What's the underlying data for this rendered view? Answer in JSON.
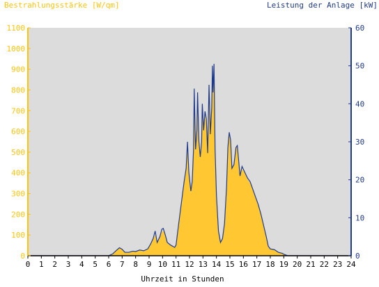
{
  "chart_data": {
    "type": "area",
    "title_left": "Bestrahlungsstärke [W/qm]",
    "title_right": "Leistung der Anlage [kW]",
    "xlabel": "Uhrzeit in Stunden",
    "x_ticks": [
      "0",
      "1",
      "2",
      "3",
      "4",
      "5",
      "6",
      "7",
      "8",
      "9",
      "10",
      "11",
      "12",
      "13",
      "14",
      "15",
      "16",
      "17",
      "18",
      "19",
      "20",
      "21",
      "22",
      "23",
      "24"
    ],
    "y_left_ticks": [
      "0",
      "100",
      "200",
      "300",
      "400",
      "500",
      "600",
      "700",
      "800",
      "900",
      "1000",
      "1100"
    ],
    "y_right_ticks": [
      "0",
      "10",
      "20",
      "30",
      "40",
      "50",
      "60"
    ],
    "xlim": [
      0,
      24
    ],
    "ylim_left": [
      0,
      1100
    ],
    "ylim_right": [
      0,
      60
    ],
    "plot_background": "#dcdcdc",
    "colors": {
      "irradiance": "#ffc832",
      "power": "#1f3a8a",
      "left_axis": "#ffc40a",
      "right_axis": "#1f3a8a"
    },
    "series": [
      {
        "name": "Bestrahlungsstärke",
        "axis": "left",
        "style": "filled-area",
        "points": [
          [
            0,
            0
          ],
          [
            6.0,
            0
          ],
          [
            6.3,
            8
          ],
          [
            6.6,
            30
          ],
          [
            6.8,
            38
          ],
          [
            7.0,
            30
          ],
          [
            7.2,
            15
          ],
          [
            7.5,
            15
          ],
          [
            7.8,
            20
          ],
          [
            8.0,
            18
          ],
          [
            8.3,
            25
          ],
          [
            8.6,
            22
          ],
          [
            8.9,
            30
          ],
          [
            9.1,
            50
          ],
          [
            9.3,
            80
          ],
          [
            9.45,
            100
          ],
          [
            9.6,
            60
          ],
          [
            9.8,
            90
          ],
          [
            9.95,
            115
          ],
          [
            10.05,
            120
          ],
          [
            10.2,
            100
          ],
          [
            10.35,
            60
          ],
          [
            10.6,
            50
          ],
          [
            10.9,
            40
          ],
          [
            11.0,
            50
          ],
          [
            11.2,
            150
          ],
          [
            11.4,
            260
          ],
          [
            11.6,
            350
          ],
          [
            11.75,
            420
          ],
          [
            11.85,
            520
          ],
          [
            11.95,
            400
          ],
          [
            12.1,
            300
          ],
          [
            12.2,
            350
          ],
          [
            12.3,
            500
          ],
          [
            12.35,
            760
          ],
          [
            12.45,
            500
          ],
          [
            12.55,
            600
          ],
          [
            12.6,
            740
          ],
          [
            12.7,
            540
          ],
          [
            12.8,
            470
          ],
          [
            12.9,
            550
          ],
          [
            12.95,
            700
          ],
          [
            13.05,
            600
          ],
          [
            13.15,
            680
          ],
          [
            13.25,
            640
          ],
          [
            13.35,
            500
          ],
          [
            13.45,
            800
          ],
          [
            13.55,
            580
          ],
          [
            13.65,
            710
          ],
          [
            13.7,
            920
          ],
          [
            13.75,
            780
          ],
          [
            13.82,
            880
          ],
          [
            13.9,
            500
          ],
          [
            14.0,
            300
          ],
          [
            14.15,
            120
          ],
          [
            14.3,
            60
          ],
          [
            14.45,
            80
          ],
          [
            14.6,
            150
          ],
          [
            14.75,
            320
          ],
          [
            14.85,
            520
          ],
          [
            14.95,
            600
          ],
          [
            15.05,
            560
          ],
          [
            15.15,
            420
          ],
          [
            15.3,
            440
          ],
          [
            15.45,
            520
          ],
          [
            15.55,
            530
          ],
          [
            15.65,
            460
          ],
          [
            15.75,
            380
          ],
          [
            15.9,
            420
          ],
          [
            16.1,
            400
          ],
          [
            16.3,
            370
          ],
          [
            16.5,
            350
          ],
          [
            16.7,
            320
          ],
          [
            16.9,
            280
          ],
          [
            17.1,
            250
          ],
          [
            17.3,
            200
          ],
          [
            17.5,
            150
          ],
          [
            17.7,
            90
          ],
          [
            17.85,
            40
          ],
          [
            18.0,
            30
          ],
          [
            18.3,
            28
          ],
          [
            18.6,
            15
          ],
          [
            18.9,
            10
          ],
          [
            19.0,
            8
          ],
          [
            19.3,
            0
          ],
          [
            24,
            0
          ]
        ]
      },
      {
        "name": "Leistung der Anlage",
        "axis": "right",
        "style": "line",
        "points": [
          [
            0,
            0
          ],
          [
            6.0,
            0
          ],
          [
            6.3,
            0.5
          ],
          [
            6.6,
            1.5
          ],
          [
            6.8,
            2.1
          ],
          [
            7.0,
            1.7
          ],
          [
            7.2,
            0.9
          ],
          [
            7.5,
            0.9
          ],
          [
            7.8,
            1.2
          ],
          [
            8.0,
            1.1
          ],
          [
            8.3,
            1.5
          ],
          [
            8.6,
            1.3
          ],
          [
            8.9,
            1.8
          ],
          [
            9.1,
            3.0
          ],
          [
            9.3,
            4.5
          ],
          [
            9.45,
            6.5
          ],
          [
            9.6,
            3.5
          ],
          [
            9.8,
            5.0
          ],
          [
            9.95,
            7.0
          ],
          [
            10.05,
            7.2
          ],
          [
            10.2,
            5.5
          ],
          [
            10.35,
            3.5
          ],
          [
            10.6,
            2.8
          ],
          [
            10.9,
            2.2
          ],
          [
            11.0,
            2.8
          ],
          [
            11.2,
            8.5
          ],
          [
            11.4,
            14.0
          ],
          [
            11.6,
            19.5
          ],
          [
            11.75,
            23.0
          ],
          [
            11.85,
            30.0
          ],
          [
            11.95,
            22.0
          ],
          [
            12.1,
            17.0
          ],
          [
            12.2,
            19.5
          ],
          [
            12.3,
            28.0
          ],
          [
            12.35,
            44.0
          ],
          [
            12.45,
            28.0
          ],
          [
            12.55,
            33.0
          ],
          [
            12.6,
            43.0
          ],
          [
            12.7,
            30.0
          ],
          [
            12.8,
            26.0
          ],
          [
            12.9,
            30.0
          ],
          [
            12.95,
            40.0
          ],
          [
            13.05,
            33.0
          ],
          [
            13.15,
            38.0
          ],
          [
            13.25,
            36.0
          ],
          [
            13.35,
            27.0
          ],
          [
            13.45,
            45.0
          ],
          [
            13.55,
            32.0
          ],
          [
            13.65,
            39.0
          ],
          [
            13.7,
            50.0
          ],
          [
            13.75,
            43.0
          ],
          [
            13.82,
            50.5
          ],
          [
            13.9,
            28.0
          ],
          [
            14.0,
            16.0
          ],
          [
            14.15,
            6.5
          ],
          [
            14.3,
            3.5
          ],
          [
            14.45,
            4.5
          ],
          [
            14.6,
            8.5
          ],
          [
            14.75,
            18.0
          ],
          [
            14.85,
            28.5
          ],
          [
            14.95,
            32.5
          ],
          [
            15.05,
            30.5
          ],
          [
            15.15,
            23.0
          ],
          [
            15.3,
            24.0
          ],
          [
            15.45,
            28.5
          ],
          [
            15.55,
            29.0
          ],
          [
            15.65,
            25.0
          ],
          [
            15.75,
            21.0
          ],
          [
            15.9,
            23.5
          ],
          [
            16.1,
            22.0
          ],
          [
            16.3,
            20.5
          ],
          [
            16.5,
            19.5
          ],
          [
            16.7,
            17.5
          ],
          [
            16.9,
            15.5
          ],
          [
            17.1,
            13.5
          ],
          [
            17.3,
            11.0
          ],
          [
            17.5,
            8.0
          ],
          [
            17.7,
            5.0
          ],
          [
            17.85,
            2.5
          ],
          [
            18.0,
            1.8
          ],
          [
            18.3,
            1.6
          ],
          [
            18.6,
            0.9
          ],
          [
            18.9,
            0.6
          ],
          [
            19.0,
            0.4
          ],
          [
            19.3,
            0
          ],
          [
            24,
            0
          ]
        ]
      }
    ]
  }
}
